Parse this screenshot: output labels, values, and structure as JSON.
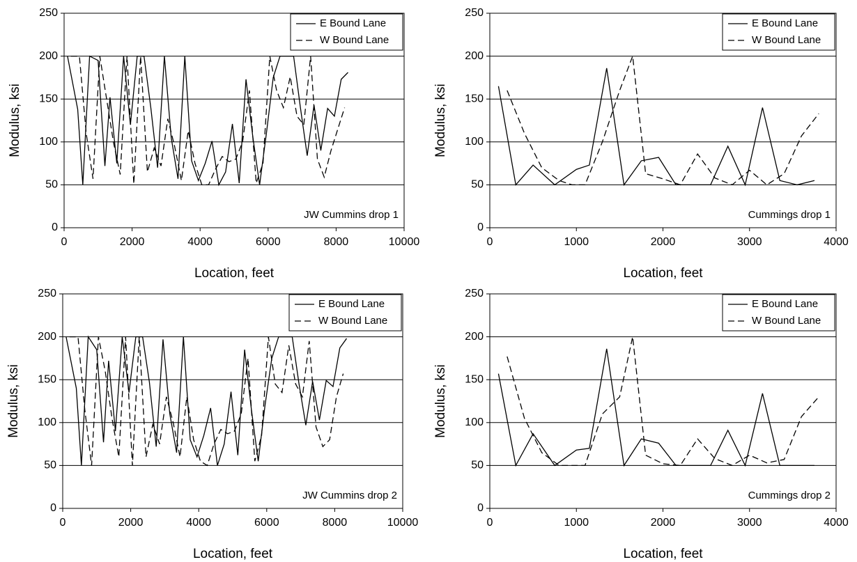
{
  "chart_data": [
    {
      "type": "line",
      "annotation": "JW Cummins drop 1",
      "xlabel": "Location, feet",
      "ylabel": "Modulus, ksi",
      "xlim": [
        0,
        10000
      ],
      "xticks": [
        0,
        2000,
        4000,
        6000,
        8000,
        10000
      ],
      "ylim": [
        0,
        250
      ],
      "yticks": [
        0,
        50,
        100,
        150,
        200,
        250
      ],
      "grid": true,
      "legend": "upper right",
      "series": [
        {
          "name": "E Bound Lane",
          "color": "#000000",
          "style": "solid",
          "x": [
            100,
            400,
            550,
            750,
            1000,
            1200,
            1350,
            1550,
            1750,
            1950,
            2150,
            2350,
            2550,
            2750,
            2950,
            3150,
            3350,
            3550,
            3750,
            3950,
            4150,
            4350,
            4550,
            4750,
            4950,
            5150,
            5350,
            5550,
            5750,
            5950,
            6150,
            6350,
            6550,
            6750,
            6950,
            7150,
            7350,
            7550,
            7750,
            7950,
            8150,
            8350
          ],
          "values": [
            200,
            138,
            50,
            200,
            195,
            72,
            152,
            75,
            200,
            120,
            200,
            200,
            140,
            70,
            200,
            105,
            57,
            200,
            78,
            55,
            75,
            101,
            50,
            65,
            121,
            52,
            173,
            106,
            50,
            110,
            175,
            200,
            200,
            200,
            140,
            84,
            143,
            90,
            139,
            130,
            173,
            181
          ]
        },
        {
          "name": "W Bound Lane",
          "color": "#000000",
          "style": "dashed",
          "x": [
            200,
            450,
            650,
            850,
            1050,
            1250,
            1450,
            1650,
            1850,
            2050,
            2250,
            2450,
            2650,
            2850,
            3050,
            3250,
            3450,
            3650,
            3850,
            4050,
            4250,
            4450,
            4650,
            4850,
            5050,
            5250,
            5450,
            5650,
            5850,
            6050,
            6250,
            6450,
            6650,
            6850,
            7050,
            7250,
            7450,
            7650,
            7850,
            8050,
            8250
          ],
          "values": [
            200,
            200,
            110,
            57,
            200,
            150,
            100,
            62,
            200,
            51,
            200,
            65,
            93,
            72,
            127,
            95,
            55,
            113,
            75,
            50,
            50,
            68,
            83,
            77,
            80,
            100,
            160,
            52,
            75,
            200,
            160,
            140,
            176,
            130,
            120,
            200,
            80,
            59,
            90,
            115,
            140
          ]
        }
      ]
    },
    {
      "type": "line",
      "annotation": "Cummings drop 1",
      "xlabel": "Location, feet",
      "ylabel": "Modulus, ksi",
      "xlim": [
        0,
        4000
      ],
      "xticks": [
        0,
        1000,
        2000,
        3000,
        4000
      ],
      "ylim": [
        0,
        250
      ],
      "yticks": [
        0,
        50,
        100,
        150,
        200,
        250
      ],
      "grid": true,
      "legend": "upper right",
      "series": [
        {
          "name": "E Bound Lane",
          "color": "#000000",
          "style": "solid",
          "x": [
            100,
            300,
            500,
            750,
            1000,
            1150,
            1350,
            1550,
            1750,
            1950,
            2150,
            2350,
            2550,
            2750,
            2950,
            3150,
            3350,
            3550,
            3750
          ],
          "values": [
            165,
            50,
            73,
            50,
            68,
            73,
            186,
            50,
            78,
            82,
            50,
            50,
            50,
            95,
            50,
            140,
            55,
            50,
            55
          ]
        },
        {
          "name": "W Bound Lane",
          "color": "#000000",
          "style": "dashed",
          "x": [
            200,
            400,
            600,
            800,
            950,
            1100,
            1300,
            1500,
            1650,
            1800,
            2000,
            2200,
            2400,
            2600,
            2800,
            3000,
            3200,
            3400,
            3600,
            3800
          ],
          "values": [
            160,
            110,
            70,
            55,
            50,
            50,
            100,
            160,
            200,
            63,
            57,
            50,
            86,
            58,
            50,
            67,
            50,
            63,
            107,
            133
          ]
        }
      ]
    },
    {
      "type": "line",
      "annotation": "JW Cummins drop 2",
      "xlabel": "Location, feet",
      "ylabel": "Modulus, ksi",
      "xlim": [
        0,
        10000
      ],
      "xticks": [
        0,
        2000,
        4000,
        6000,
        8000,
        10000
      ],
      "ylim": [
        0,
        250
      ],
      "yticks": [
        0,
        50,
        100,
        150,
        200,
        250
      ],
      "grid": true,
      "legend": "upper right",
      "series": [
        {
          "name": "E Bound Lane",
          "color": "#000000",
          "style": "solid",
          "x": [
            100,
            400,
            550,
            750,
            1000,
            1200,
            1350,
            1550,
            1750,
            1950,
            2150,
            2350,
            2550,
            2750,
            2950,
            3150,
            3350,
            3550,
            3750,
            3950,
            4150,
            4350,
            4550,
            4750,
            4950,
            5150,
            5350,
            5550,
            5750,
            5950,
            6150,
            6350,
            6550,
            6750,
            6950,
            7150,
            7350,
            7550,
            7750,
            7950,
            8150,
            8350
          ],
          "values": [
            200,
            140,
            50,
            200,
            185,
            77,
            172,
            90,
            200,
            135,
            200,
            200,
            147,
            72,
            197,
            110,
            65,
            200,
            80,
            60,
            85,
            117,
            50,
            75,
            136,
            62,
            185,
            115,
            55,
            120,
            175,
            200,
            200,
            200,
            145,
            97,
            148,
            103,
            149,
            142,
            187,
            198
          ]
        },
        {
          "name": "W Bound Lane",
          "color": "#000000",
          "style": "dashed",
          "x": [
            200,
            450,
            650,
            850,
            1050,
            1250,
            1450,
            1650,
            1850,
            2050,
            2250,
            2450,
            2650,
            2850,
            3050,
            3250,
            3450,
            3650,
            3850,
            4050,
            4250,
            4450,
            4650,
            4850,
            5050,
            5250,
            5450,
            5650,
            5850,
            6050,
            6250,
            6450,
            6650,
            6850,
            7050,
            7250,
            7450,
            7650,
            7850,
            8050,
            8250
          ],
          "values": [
            200,
            200,
            115,
            50,
            200,
            160,
            105,
            60,
            200,
            50,
            200,
            60,
            98,
            75,
            130,
            100,
            60,
            130,
            80,
            55,
            50,
            75,
            92,
            87,
            90,
            110,
            175,
            55,
            85,
            200,
            145,
            135,
            190,
            145,
            130,
            195,
            95,
            72,
            80,
            130,
            157
          ]
        }
      ]
    },
    {
      "type": "line",
      "annotation": "Cummings drop 2",
      "xlabel": "Location, feet",
      "ylabel": "Modulus, ksi",
      "xlim": [
        0,
        4000
      ],
      "xticks": [
        0,
        1000,
        2000,
        3000,
        4000
      ],
      "ylim": [
        0,
        250
      ],
      "yticks": [
        0,
        50,
        100,
        150,
        200,
        250
      ],
      "grid": true,
      "legend": "upper right",
      "series": [
        {
          "name": "E Bound Lane",
          "color": "#000000",
          "style": "solid",
          "x": [
            100,
            300,
            500,
            750,
            1000,
            1150,
            1350,
            1550,
            1750,
            1950,
            2150,
            2350,
            2550,
            2750,
            2950,
            3150,
            3350,
            3550,
            3750
          ],
          "values": [
            157,
            50,
            87,
            50,
            68,
            70,
            186,
            50,
            81,
            76,
            50,
            50,
            50,
            91,
            50,
            134,
            50,
            50,
            50
          ]
        },
        {
          "name": "W Bound Lane",
          "color": "#000000",
          "style": "dashed",
          "x": [
            200,
            400,
            600,
            800,
            950,
            1100,
            1300,
            1500,
            1650,
            1800,
            2000,
            2200,
            2400,
            2600,
            2800,
            3000,
            3200,
            3400,
            3600,
            3800
          ],
          "values": [
            177,
            105,
            65,
            50,
            50,
            50,
            110,
            130,
            200,
            62,
            52,
            50,
            81,
            58,
            50,
            62,
            53,
            57,
            107,
            130
          ]
        }
      ]
    }
  ]
}
